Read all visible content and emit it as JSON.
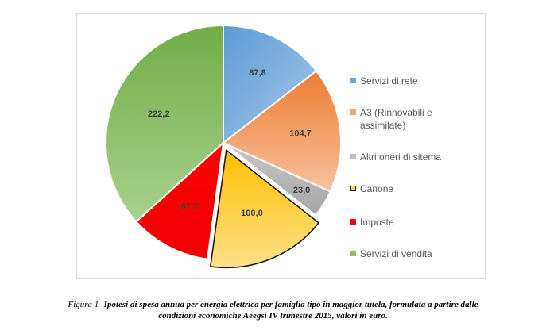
{
  "chart_data": {
    "type": "pie",
    "title": "",
    "categories": [
      "Servizi di rete",
      "A3 (Rinnovabili e assimilate)",
      "Altri oneri di sitema",
      "Canone",
      "Imposte",
      "Servizi di vendita"
    ],
    "values": [
      87.8,
      104.7,
      23.0,
      100.0,
      67.3,
      222.2
    ],
    "value_labels": [
      "87,8",
      "104,7",
      "23,0",
      "100,0",
      "67,3",
      "222,2"
    ],
    "colors": [
      "#6fa8dc",
      "#f4a46e",
      "#bfbfbf",
      "#ffd34f",
      "#ff0000",
      "#8fbd5a"
    ],
    "exploded_slice": "Canone",
    "legend_position": "right"
  },
  "legend": {
    "items": [
      {
        "label_lines": [
          "Servizi di rete"
        ],
        "color": "#6fa8dc"
      },
      {
        "label_lines": [
          "A3 (Rinnovabili e",
          "assimilate)"
        ],
        "color": "#f4a46e"
      },
      {
        "label_lines": [
          "Altri oneri di sitema"
        ],
        "color": "#bfbfbf"
      },
      {
        "label_lines": [
          "Canone"
        ],
        "color": "#ffd34f"
      },
      {
        "label_lines": [
          "Imposte"
        ],
        "color": "#ff0000"
      },
      {
        "label_lines": [
          "Servizi di vendita"
        ],
        "color": "#8fbd5a"
      }
    ]
  },
  "caption": {
    "lead": "Figura 1- ",
    "line1": "Ipotesi di spesa annua per energia elettrica per famiglia tipo in maggior tutela, formulata a partire dalle",
    "line2": "condizioni economiche Aeegsi IV trimestre 2015, valori in euro."
  }
}
